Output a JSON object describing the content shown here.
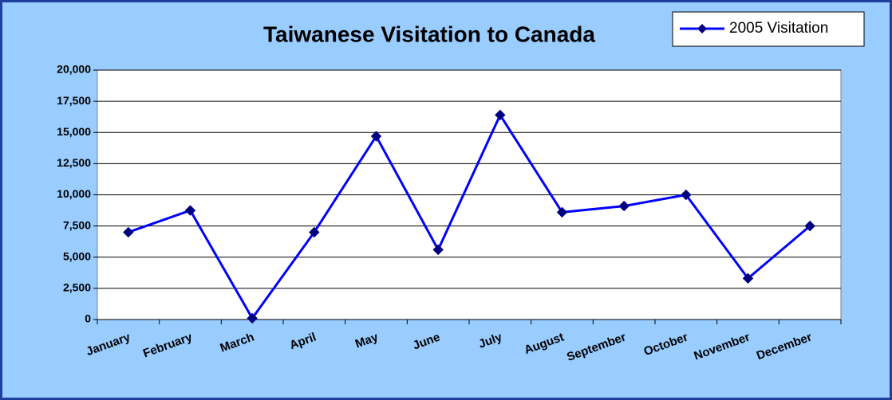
{
  "chart_data": {
    "type": "line",
    "title": "Taiwanese Visitation to Canada",
    "categories": [
      "January",
      "February",
      "March",
      "April",
      "May",
      "June",
      "July",
      "August",
      "September",
      "October",
      "November",
      "December"
    ],
    "series": [
      {
        "name": "2005 Visitation",
        "color": "#0000ff",
        "marker_color": "#000080",
        "values": [
          7000,
          8750,
          100,
          7000,
          14700,
          5600,
          16400,
          8600,
          9100,
          10000,
          3300,
          7500
        ]
      }
    ],
    "ylim": [
      0,
      20000
    ],
    "yticks": [
      0,
      {
        "value": 2500,
        "label": "2,500"
      },
      {
        "value": 5000,
        "label": "5,000"
      },
      {
        "value": 7500,
        "label": "7,500"
      },
      {
        "value": 10000,
        "label": "10,000"
      },
      {
        "value": 12500,
        "label": "12,500"
      },
      {
        "value": 15000,
        "label": "15,000"
      },
      {
        "value": 17500,
        "label": "17,500"
      },
      {
        "value": 20000,
        "label": "20,000"
      }
    ],
    "grid": true,
    "legend": "top-right"
  }
}
